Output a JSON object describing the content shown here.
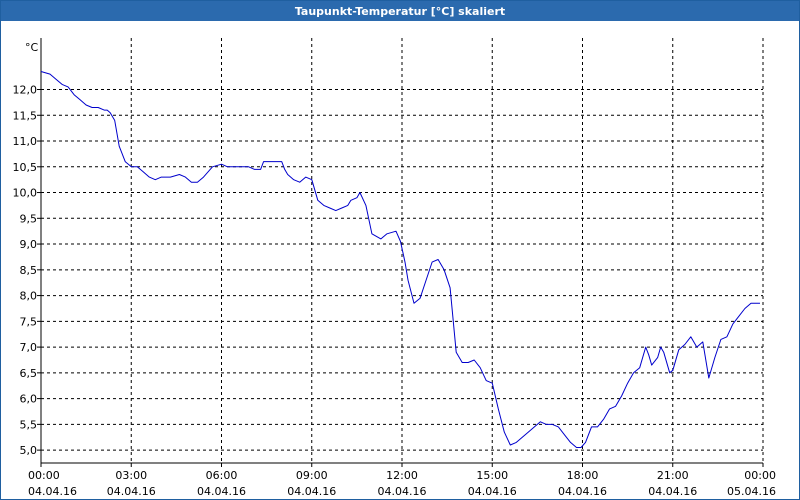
{
  "window": {
    "title": "Taupunkt-Temperatur [°C] skaliert"
  },
  "colors": {
    "titlebar": "#2b6aae",
    "series_line": "#0000cc",
    "grid": "#000000"
  },
  "chart_data": {
    "type": "line",
    "title": "Taupunkt-Temperatur [°C] skaliert",
    "ylabel": "°C",
    "xlabel": "",
    "ylim": [
      4.75,
      13.0
    ],
    "xlim_hours": [
      0,
      24
    ],
    "grid": true,
    "y_ticks": [
      "5,0",
      "5,5",
      "6,0",
      "6,5",
      "7,0",
      "7,5",
      "8,0",
      "8,5",
      "9,0",
      "9,5",
      "10,0",
      "10,5",
      "11,0",
      "11,5",
      "12,0"
    ],
    "y_tick_values": [
      5.0,
      5.5,
      6.0,
      6.5,
      7.0,
      7.5,
      8.0,
      8.5,
      9.0,
      9.5,
      10.0,
      10.5,
      11.0,
      11.5,
      12.0
    ],
    "x_ticks": [
      {
        "hours": 0,
        "time": "00:00",
        "date": "04.04.16"
      },
      {
        "hours": 3,
        "time": "03:00",
        "date": "04.04.16"
      },
      {
        "hours": 6,
        "time": "06:00",
        "date": "04.04.16"
      },
      {
        "hours": 9,
        "time": "09:00",
        "date": "04.04.16"
      },
      {
        "hours": 12,
        "time": "12:00",
        "date": "04.04.16"
      },
      {
        "hours": 15,
        "time": "15:00",
        "date": "04.04.16"
      },
      {
        "hours": 18,
        "time": "18:00",
        "date": "04.04.16"
      },
      {
        "hours": 21,
        "time": "21:00",
        "date": "04.04.16"
      },
      {
        "hours": 24,
        "time": "00:00",
        "date": "05.04.16"
      }
    ],
    "series": [
      {
        "x": [
          0.0,
          0.3,
          0.5,
          0.7,
          0.9,
          1.1,
          1.3,
          1.5,
          1.7,
          1.9,
          2.1,
          2.2,
          2.3,
          2.45,
          2.6,
          2.8,
          3.0,
          3.2,
          3.4,
          3.6,
          3.8,
          4.0,
          4.3,
          4.6,
          4.8,
          5.0,
          5.2,
          5.4,
          5.7,
          6.0,
          6.2,
          6.4,
          6.6,
          6.9,
          7.1,
          7.3,
          7.4,
          7.6,
          7.8,
          8.0,
          8.1,
          8.2,
          8.4,
          8.6,
          8.8,
          9.0,
          9.2,
          9.4,
          9.6,
          9.8,
          10.0,
          10.2,
          10.3,
          10.5,
          10.6,
          10.8,
          11.0,
          11.3,
          11.5,
          11.8,
          11.95,
          12.1,
          12.2,
          12.4,
          12.6,
          12.8,
          13.0,
          13.2,
          13.4,
          13.6,
          13.8,
          14.0,
          14.2,
          14.4,
          14.6,
          14.8,
          15.0,
          15.2,
          15.4,
          15.6,
          15.8,
          16.0,
          16.2,
          16.4,
          16.6,
          16.8,
          17.0,
          17.2,
          17.4,
          17.6,
          17.8,
          17.95,
          18.1,
          18.3,
          18.5,
          18.7,
          18.9,
          19.1,
          19.3,
          19.5,
          19.7,
          19.9,
          20.1,
          20.2,
          20.3,
          20.5,
          20.6,
          20.7,
          20.9,
          21.0,
          21.2,
          21.4,
          21.6,
          21.8,
          22.0,
          22.2,
          22.4,
          22.6,
          22.8,
          23.0,
          23.2,
          23.4,
          23.6,
          23.8,
          23.9
        ],
        "y": [
          12.35,
          12.3,
          12.2,
          12.1,
          12.05,
          11.9,
          11.8,
          11.7,
          11.65,
          11.65,
          11.6,
          11.6,
          11.55,
          11.4,
          10.9,
          10.6,
          10.5,
          10.5,
          10.4,
          10.3,
          10.25,
          10.3,
          10.3,
          10.35,
          10.3,
          10.2,
          10.2,
          10.3,
          10.5,
          10.55,
          10.5,
          10.5,
          10.5,
          10.5,
          10.45,
          10.45,
          10.6,
          10.6,
          10.6,
          10.6,
          10.45,
          10.35,
          10.25,
          10.2,
          10.3,
          10.25,
          9.85,
          9.75,
          9.7,
          9.65,
          9.7,
          9.75,
          9.85,
          9.9,
          10.0,
          9.75,
          9.2,
          9.1,
          9.2,
          9.25,
          9.05,
          8.65,
          8.3,
          7.85,
          7.95,
          8.3,
          8.65,
          8.7,
          8.5,
          8.15,
          6.9,
          6.7,
          6.7,
          6.75,
          6.6,
          6.35,
          6.3,
          5.8,
          5.35,
          5.1,
          5.15,
          5.25,
          5.35,
          5.45,
          5.55,
          5.5,
          5.5,
          5.45,
          5.3,
          5.15,
          5.05,
          5.05,
          5.15,
          5.45,
          5.45,
          5.6,
          5.8,
          5.85,
          6.05,
          6.3,
          6.5,
          6.6,
          7.0,
          6.85,
          6.65,
          6.8,
          7.0,
          6.9,
          6.5,
          6.55,
          6.95,
          7.05,
          7.2,
          7.0,
          7.1,
          6.4,
          6.8,
          7.15,
          7.2,
          7.45,
          7.6,
          7.75,
          7.85,
          7.85,
          7.85
        ]
      }
    ]
  }
}
